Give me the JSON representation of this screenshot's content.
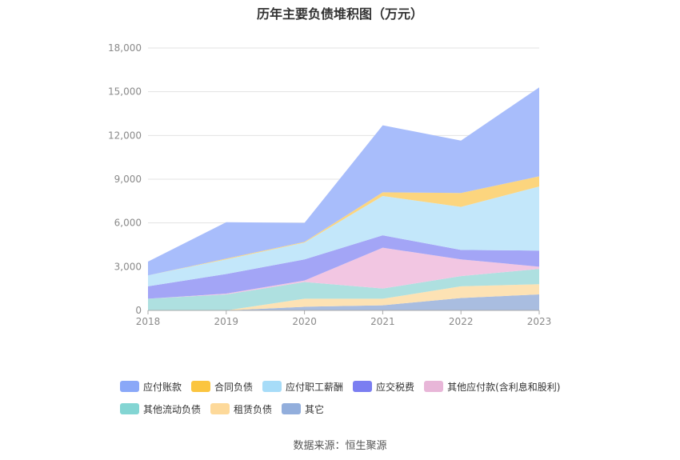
{
  "title": "历年主要负债堆积图（万元）",
  "source": "数据来源：恒生聚源",
  "chart_data": {
    "type": "area",
    "stacked": true,
    "categories": [
      "2018",
      "2019",
      "2020",
      "2021",
      "2022",
      "2023"
    ],
    "ylim": [
      0,
      18000
    ],
    "yticks": [
      0,
      3000,
      6000,
      9000,
      12000,
      15000,
      18000
    ],
    "ytick_labels": [
      "0",
      "3,000",
      "6,000",
      "9,000",
      "12,000",
      "15,000",
      "18,000"
    ],
    "grid": true,
    "legend_position": "bottom",
    "series": [
      {
        "name": "其它",
        "color": "#a9bde0",
        "values": [
          0,
          0,
          250,
          350,
          850,
          1100
        ]
      },
      {
        "name": "租赁负债",
        "color": "#fde2b4",
        "values": [
          0,
          0,
          550,
          450,
          800,
          700
        ]
      },
      {
        "name": "其他流动负债",
        "color": "#aee0e0",
        "values": [
          800,
          1100,
          1150,
          700,
          700,
          1050
        ]
      },
      {
        "name": "其他应付款(含利息和股利)",
        "color": "#f2c6e2",
        "values": [
          0,
          50,
          100,
          2800,
          1150,
          150
        ]
      },
      {
        "name": "应交税费",
        "color": "#a3a5f6",
        "values": [
          850,
          1350,
          1450,
          850,
          650,
          1100
        ]
      },
      {
        "name": "应付职工薪酬",
        "color": "#c3e7fa",
        "values": [
          750,
          1000,
          1150,
          2700,
          2950,
          4400
        ]
      },
      {
        "name": "合同负债",
        "color": "#fcd57e",
        "values": [
          0,
          50,
          50,
          250,
          950,
          700
        ]
      },
      {
        "name": "应付账款",
        "color": "#a8bdfb",
        "values": [
          950,
          2500,
          1300,
          4600,
          3600,
          6100
        ]
      }
    ]
  },
  "legend": {
    "row1": [
      {
        "label": "应付账款",
        "color": "#8aa8f8"
      },
      {
        "label": "合同负债",
        "color": "#fbc53f"
      },
      {
        "label": "应付职工薪酬",
        "color": "#a7dcf8"
      },
      {
        "label": "应交税费",
        "color": "#7b7ef1"
      },
      {
        "label": "其他应付款(含利息和股利)",
        "color": "#e8b6d8"
      }
    ],
    "row2": [
      {
        "label": "其他流动负债",
        "color": "#83d5d3"
      },
      {
        "label": "租赁负债",
        "color": "#fdd99a"
      },
      {
        "label": "其它",
        "color": "#92aedc"
      }
    ]
  }
}
